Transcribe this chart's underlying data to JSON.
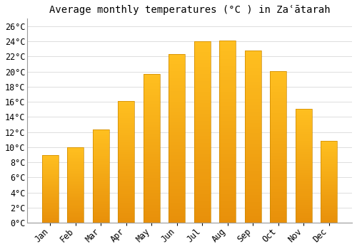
{
  "title": "Average monthly temperatures (°C ) in Zaʿātarah",
  "months": [
    "Jan",
    "Feb",
    "Mar",
    "Apr",
    "May",
    "Jun",
    "Jul",
    "Aug",
    "Sep",
    "Oct",
    "Nov",
    "Dec"
  ],
  "values": [
    9,
    10,
    12.3,
    16.1,
    19.7,
    22.3,
    24,
    24.1,
    22.8,
    20.1,
    15.1,
    10.8
  ],
  "bar_color_top": "#FFC020",
  "bar_color_bottom": "#E8900A",
  "bar_edge_color": "#CC8800",
  "background_color": "#FFFFFF",
  "grid_color": "#DDDDDD",
  "ylim": [
    0,
    27
  ],
  "ytick_step": 2,
  "title_fontsize": 10,
  "tick_fontsize": 8.5,
  "font_family": "monospace"
}
